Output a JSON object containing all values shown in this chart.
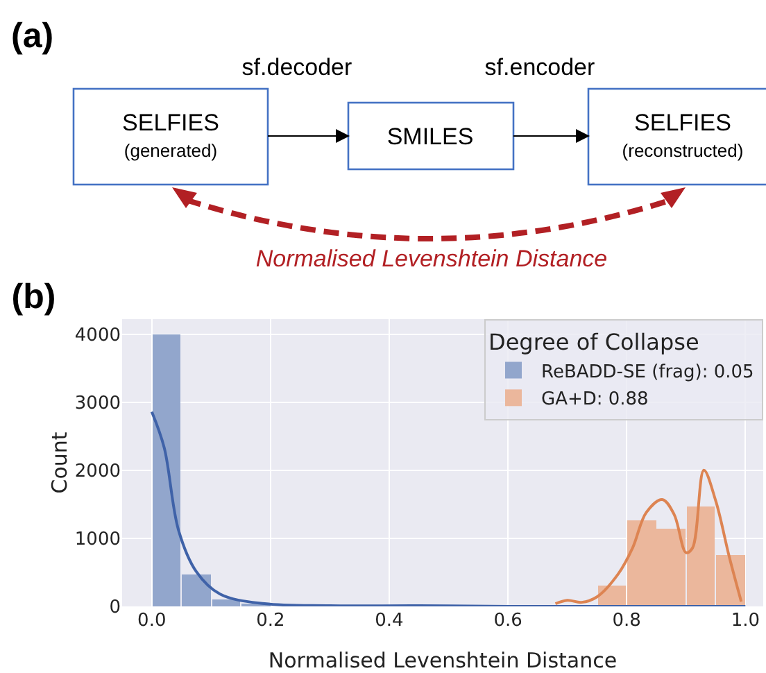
{
  "chart_data": [
    {
      "type": "other",
      "title": "(a)",
      "annotations": [
        "sf.decoder",
        "sf.encoder",
        "SELFIES",
        "(generated)",
        "SMILES",
        "SELFIES",
        "(reconstructed)",
        "Normalised Levenshtein Distance"
      ]
    },
    {
      "type": "histogram",
      "title": "(b)",
      "xlabel": "Normalised Levenshtein Distance",
      "ylabel": "Count",
      "legend_title": "Degree of Collapse",
      "legend": "top right",
      "grid": true,
      "bins": [
        0,
        0.05,
        0.1,
        0.15,
        0.2,
        0.25,
        0.3,
        0.35,
        0.4,
        0.45,
        0.5,
        0.55,
        0.6,
        0.65,
        0.7,
        0.75,
        0.8,
        0.85,
        0.9,
        0.95,
        1.0
      ],
      "series": [
        {
          "name": "ReBADD-SE (frag): 0.05",
          "color": "#92a6cc",
          "values": [
            4000,
            470,
            100,
            40,
            0,
            0,
            0,
            0,
            0,
            0,
            0,
            0,
            0,
            0,
            0,
            0,
            0,
            0,
            0,
            0
          ]
        },
        {
          "name": "GA+D: 0.88",
          "color": "#ebb79c",
          "values": [
            0,
            0,
            0,
            0,
            0,
            0,
            0,
            0,
            0,
            0,
            0,
            0,
            0,
            0,
            0,
            310,
            1260,
            1140,
            1470,
            750
          ]
        },
        {
          "type": "line",
          "color": "#3f62a8",
          "x": [
            0,
            0.021,
            0.045,
            0.075,
            0.115,
            0.19,
            0.3,
            0.45,
            0.6,
            0.8,
            1.0
          ],
          "values": [
            2860,
            2330,
            1120,
            510,
            180,
            40,
            10,
            10,
            0,
            0,
            0
          ]
        },
        {
          "type": "line",
          "color": "#dd8452",
          "x": [
            0.68,
            0.7,
            0.724,
            0.75,
            0.786,
            0.81,
            0.833,
            0.86,
            0.88,
            0.9,
            0.911,
            0.93,
            0.95,
            0.973,
            0.993
          ],
          "values": [
            40,
            90,
            60,
            140,
            480,
            860,
            1380,
            1570,
            1350,
            790,
            860,
            2000,
            1550,
            720,
            70
          ]
        }
      ],
      "xlim": [
        -0.05,
        1.03
      ],
      "xticks": [
        {
          "value": 0,
          "label": "0.0"
        },
        0.2,
        0.4,
        0.6,
        0.8,
        {
          "value": 1,
          "label": "1.0"
        }
      ],
      "ylim": [
        0,
        4220
      ],
      "yticks": [
        0,
        1000,
        2000,
        3000,
        4000
      ]
    }
  ]
}
